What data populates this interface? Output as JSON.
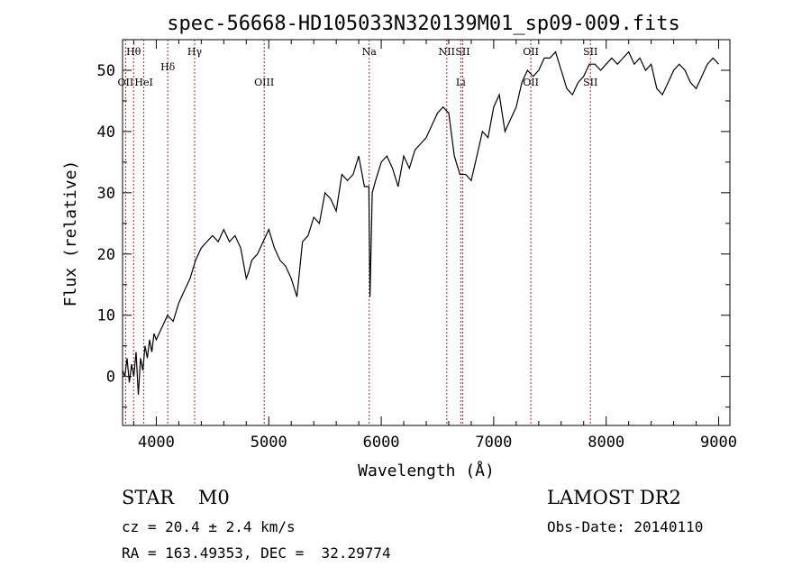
{
  "chart_data": {
    "type": "line",
    "title": "spec-56668-HD105033N320139M01_sp09-009.fits",
    "xlabel": "Wavelength (Å)",
    "ylabel": "Flux (relative)",
    "xlim": [
      3700,
      9100
    ],
    "ylim": [
      -8,
      55
    ],
    "xticks": [
      4000,
      5000,
      6000,
      7000,
      8000,
      9000
    ],
    "yticks": [
      0,
      10,
      20,
      30,
      40,
      50
    ],
    "grid": false,
    "line_color": "#000000",
    "marker_color": "#b22222",
    "x": [
      3700,
      3720,
      3740,
      3760,
      3780,
      3800,
      3820,
      3840,
      3860,
      3880,
      3900,
      3920,
      3940,
      3960,
      3980,
      4000,
      4050,
      4100,
      4150,
      4200,
      4250,
      4300,
      4350,
      4400,
      4450,
      4500,
      4550,
      4600,
      4650,
      4700,
      4750,
      4800,
      4820,
      4850,
      4900,
      4950,
      5000,
      5050,
      5100,
      5150,
      5200,
      5250,
      5300,
      5350,
      5400,
      5450,
      5500,
      5550,
      5600,
      5650,
      5700,
      5750,
      5800,
      5850,
      5890,
      5900,
      5920,
      5950,
      6000,
      6050,
      6100,
      6150,
      6200,
      6250,
      6300,
      6350,
      6400,
      6450,
      6500,
      6550,
      6600,
      6650,
      6700,
      6750,
      6800,
      6850,
      6900,
      6950,
      7000,
      7050,
      7100,
      7150,
      7200,
      7250,
      7300,
      7350,
      7400,
      7450,
      7500,
      7550,
      7600,
      7650,
      7700,
      7750,
      7800,
      7850,
      7900,
      7950,
      8000,
      8050,
      8100,
      8150,
      8200,
      8250,
      8300,
      8350,
      8400,
      8450,
      8500,
      8550,
      8600,
      8650,
      8700,
      8750,
      8800,
      8850,
      8900,
      8950,
      9000
    ],
    "y": [
      1,
      0,
      3,
      -1,
      2,
      0,
      4,
      -3,
      3,
      1,
      5,
      3,
      6,
      4,
      7,
      6,
      8,
      10,
      9,
      12,
      14,
      16,
      19,
      21,
      22,
      23,
      22,
      24,
      22,
      23,
      21,
      16,
      17,
      19,
      20,
      22,
      24,
      21,
      19,
      18,
      16,
      13,
      22,
      23,
      26,
      25,
      30,
      29,
      27,
      33,
      32,
      33,
      36,
      31,
      31,
      13,
      30,
      32,
      35,
      36,
      34,
      31,
      36,
      34,
      37,
      38,
      39,
      41,
      43,
      44,
      43,
      36,
      33,
      33,
      32,
      36,
      40,
      39,
      44,
      46,
      40,
      42,
      44,
      48,
      50,
      49,
      50,
      52,
      52,
      53,
      50,
      47,
      46,
      48,
      49,
      51,
      51,
      50,
      51,
      52,
      51,
      52,
      53,
      51,
      52,
      50,
      51,
      47,
      46,
      48,
      50,
      51,
      50,
      48,
      47,
      49,
      51,
      52,
      51
    ]
  },
  "lines_top": [
    {
      "label": "Hθ",
      "x": 3798
    },
    {
      "label": "Hδ",
      "x": 4102
    },
    {
      "label": "Hγ",
      "x": 4341
    },
    {
      "label": "Na",
      "x": 5893
    },
    {
      "label": "NII",
      "x": 6583
    },
    {
      "label": "SII",
      "x": 6724
    },
    {
      "label": "OII",
      "x": 7330
    },
    {
      "label": "SII",
      "x": 7860
    }
  ],
  "lines_bottom": [
    {
      "label": "OII",
      "x": 3727
    },
    {
      "label": "HeI",
      "x": 3889
    },
    {
      "label": "OIII",
      "x": 4959
    },
    {
      "label": "Li",
      "x": 6707
    },
    {
      "label": "OII",
      "x": 7330
    },
    {
      "label": "SII",
      "x": 7860
    }
  ],
  "info": {
    "class": "STAR    M0",
    "cz": "cz = 20.4 ± 2.4 km/s",
    "radec": "RA = 163.49353, DEC =  32.29774",
    "survey": "LAMOST DR2",
    "obsdate": "Obs-Date: 20140110"
  }
}
